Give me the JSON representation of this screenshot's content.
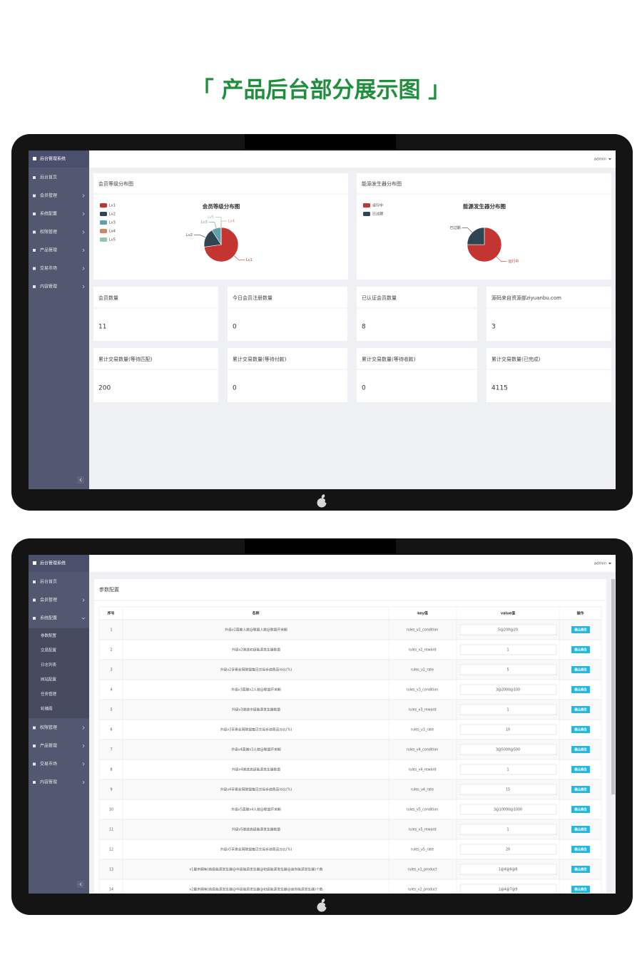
{
  "title": "「 产品后台部分展示图 」",
  "screen1": {
    "brand": "后台管理系统",
    "user": "admin",
    "menu": [
      "后台首页",
      "会员管理",
      "系统配置",
      "权限管理",
      "产品管理",
      "交易市场",
      "内容管理"
    ],
    "charts": [
      {
        "type": "pie",
        "panel_title": "会员等级分布图",
        "title": "会员等级分布图",
        "categories": [
          "Lv1",
          "Lv2",
          "Lv3",
          "Lv4",
          "Lv5"
        ],
        "values": [
          8,
          2,
          1,
          0,
          0
        ],
        "colors": [
          "#c23531",
          "#2f4554",
          "#61a0a8",
          "#d48265",
          "#91c7ae"
        ]
      },
      {
        "type": "pie",
        "panel_title": "能源发生器分布图",
        "title": "能源发生器分布图",
        "categories": [
          "运行中",
          "已过期"
        ],
        "values": [
          3,
          1
        ],
        "colors": [
          "#c23531",
          "#2f4554"
        ]
      }
    ],
    "stats": [
      {
        "label": "会员数量",
        "value": 11
      },
      {
        "label": "今日会员注册数量",
        "value": 0
      },
      {
        "label": "已认证会员数量",
        "value": 8
      },
      {
        "label": "源码来自资源部ziyuanbu.com",
        "value": 3
      },
      {
        "label": "累计交易数量(等待匹配)",
        "value": 200
      },
      {
        "label": "累计交易数量(等待付款)",
        "value": 0
      },
      {
        "label": "累计交易数量(等待收款)",
        "value": 0
      },
      {
        "label": "累计交易数量(已完成)",
        "value": 4115
      }
    ]
  },
  "screen2": {
    "brand": "后台管理系统",
    "user": "admin",
    "menu": [
      "后台首页",
      "会员管理",
      "系统配置",
      "权限管理",
      "产品管理",
      "交易市场",
      "内容管理"
    ],
    "submenu": [
      "参数配置",
      "交易配置",
      "日志列表",
      "网站配置",
      "任务管理",
      "轮播图"
    ],
    "panel_title": "参数配置",
    "table": {
      "columns": [
        "序号",
        "名称",
        "key值",
        "value值",
        "操作"
      ],
      "rows": [
        [
          1,
          "升级v2直推人数@联盟人数@联盟开采期",
          "rules_v2_condition",
          "5@200@20",
          "确认修改"
        ],
        [
          2,
          "升级v2赠送初级能源发生器数量",
          "rules_v2_reward",
          1,
          "确认修改"
        ],
        [
          3,
          "升级v2享受全网联盟每日交易手续费百分比(%)",
          "rules_v2_rate",
          5,
          "确认修改"
        ],
        [
          4,
          "升级v3直推v2人数@联盟开采期",
          "rules_v3_condition",
          "3@2000@100",
          "确认修改"
        ],
        [
          5,
          "升级v3赠送中级能源发生器数量",
          "rules_v3_reward",
          1,
          "确认修改"
        ],
        [
          6,
          "升级v3享受全网联盟每日交易手续费百分比(%)",
          "rules_v3_rate",
          10,
          "确认修改"
        ],
        [
          7,
          "升级v4直推v3人数@联盟开采期",
          "rules_v4_condition",
          "3@5000@500",
          "确认修改"
        ],
        [
          8,
          "升级v4赠送高级能源发生器数量",
          "rules_v4_reward",
          1,
          "确认修改"
        ],
        [
          9,
          "升级v4享受全网联盟每日交易手续费百分比(%)",
          "rules_v4_rate",
          15,
          "确认修改"
        ],
        [
          10,
          "升级v5直推v4人数@联盟开采期",
          "rules_v5_condition",
          "3@10000@1000",
          "确认修改"
        ],
        [
          11,
          "升级v5赠送高级能源发生器数量",
          "rules_v5_reward",
          1,
          "确认修改"
        ],
        [
          12,
          "升级v5享受全网联盟每日交易手续费百分比(%)",
          "rules_v5_rate",
          20,
          "确认修改"
        ],
        [
          13,
          "v1最多拥有(高级能源发生器@中级能源发生器@初级能源发生器@迷你能源发生器)个数",
          "rules_v1_product",
          "1@4@6@8",
          "确认修改"
        ],
        [
          14,
          "v2最多拥有(高级能源发生器@中级能源发生器@初级能源发生器@迷你能源发生器)个数",
          "rules_v2_product",
          "1@4@7@9",
          "确认修改"
        ]
      ]
    }
  }
}
